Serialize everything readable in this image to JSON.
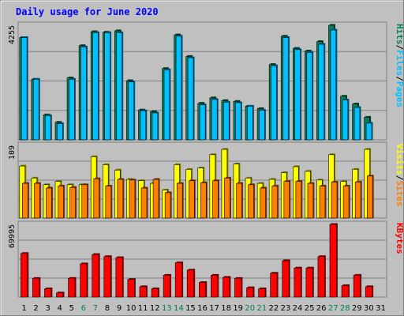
{
  "chart_data": [
    {
      "panel": "hits-files-pages",
      "type": "bar",
      "title": "Daily usage for June 2020",
      "ymax_label": "4255",
      "ymax": 4255,
      "categories": [
        "1",
        "2",
        "3",
        "4",
        "5",
        "6",
        "7",
        "8",
        "9",
        "10",
        "11",
        "12",
        "13",
        "14",
        "15",
        "16",
        "17",
        "18",
        "19",
        "20",
        "21",
        "22",
        "23",
        "24",
        "25",
        "26",
        "27",
        "28",
        "29",
        "30",
        "31"
      ],
      "weekend_days": [
        "6",
        "7",
        "13",
        "14",
        "20",
        "21",
        "27",
        "28"
      ],
      "legend": [
        "Pages",
        "Files",
        "Hits"
      ],
      "series": [
        {
          "name": "Hits",
          "color": "#00805c",
          "values": [
            3800,
            2250,
            930,
            650,
            2300,
            3500,
            4020,
            4000,
            4050,
            2200,
            1110,
            1050,
            2650,
            3900,
            3100,
            1360,
            1560,
            1460,
            1430,
            1250,
            1160,
            2800,
            3850,
            3400,
            3300,
            3650,
            4255,
            1620,
            1330,
            840,
            0
          ]
        },
        {
          "name": "Files",
          "color": "#00c0ff",
          "values": [
            3800,
            2250,
            900,
            600,
            2250,
            3450,
            3980,
            3980,
            3980,
            2150,
            1080,
            1000,
            2600,
            3850,
            3050,
            1300,
            1500,
            1400,
            1380,
            1250,
            1100,
            2750,
            3800,
            3350,
            3250,
            3550,
            4080,
            1480,
            1200,
            620,
            0
          ]
        },
        {
          "name": "Pages",
          "color": "#00c0ff",
          "values": [
            0,
            0,
            0,
            0,
            0,
            0,
            0,
            0,
            0,
            0,
            0,
            0,
            0,
            0,
            0,
            0,
            0,
            0,
            0,
            0,
            0,
            0,
            0,
            0,
            0,
            0,
            0,
            0,
            0,
            0,
            0
          ]
        }
      ]
    },
    {
      "panel": "visits-sites",
      "type": "bar",
      "ymax_label": "109",
      "ymax": 109,
      "legend": [
        "Sites",
        "Visits"
      ],
      "series": [
        {
          "name": "Visits",
          "color": "#ffff00",
          "values": [
            78,
            60,
            50,
            55,
            50,
            50,
            92,
            80,
            72,
            58,
            56,
            52,
            42,
            80,
            73,
            75,
            95,
            103,
            81,
            60,
            52,
            58,
            68,
            77,
            70,
            57,
            95,
            55,
            73,
            103,
            0
          ]
        },
        {
          "name": "Sites",
          "color": "#ff8000",
          "values": [
            52,
            52,
            45,
            48,
            46,
            50,
            59,
            48,
            58,
            57,
            45,
            58,
            38,
            52,
            56,
            53,
            56,
            60,
            52,
            50,
            45,
            48,
            55,
            55,
            52,
            48,
            54,
            48,
            54,
            63,
            0
          ]
        }
      ]
    },
    {
      "panel": "kbytes",
      "type": "bar",
      "ymax_label": "69995",
      "ymax": 69995,
      "legend": [
        "KBytes"
      ],
      "series": [
        {
          "name": "KBytes",
          "color": "#ff0000",
          "values": [
            42000,
            18000,
            8000,
            4000,
            18000,
            32000,
            41000,
            39000,
            38000,
            17000,
            10000,
            8000,
            21000,
            33000,
            26000,
            14000,
            21000,
            19000,
            18000,
            9000,
            8000,
            23000,
            35000,
            28000,
            28000,
            39000,
            69995,
            11000,
            21000,
            10000,
            0
          ]
        }
      ]
    }
  ]
}
